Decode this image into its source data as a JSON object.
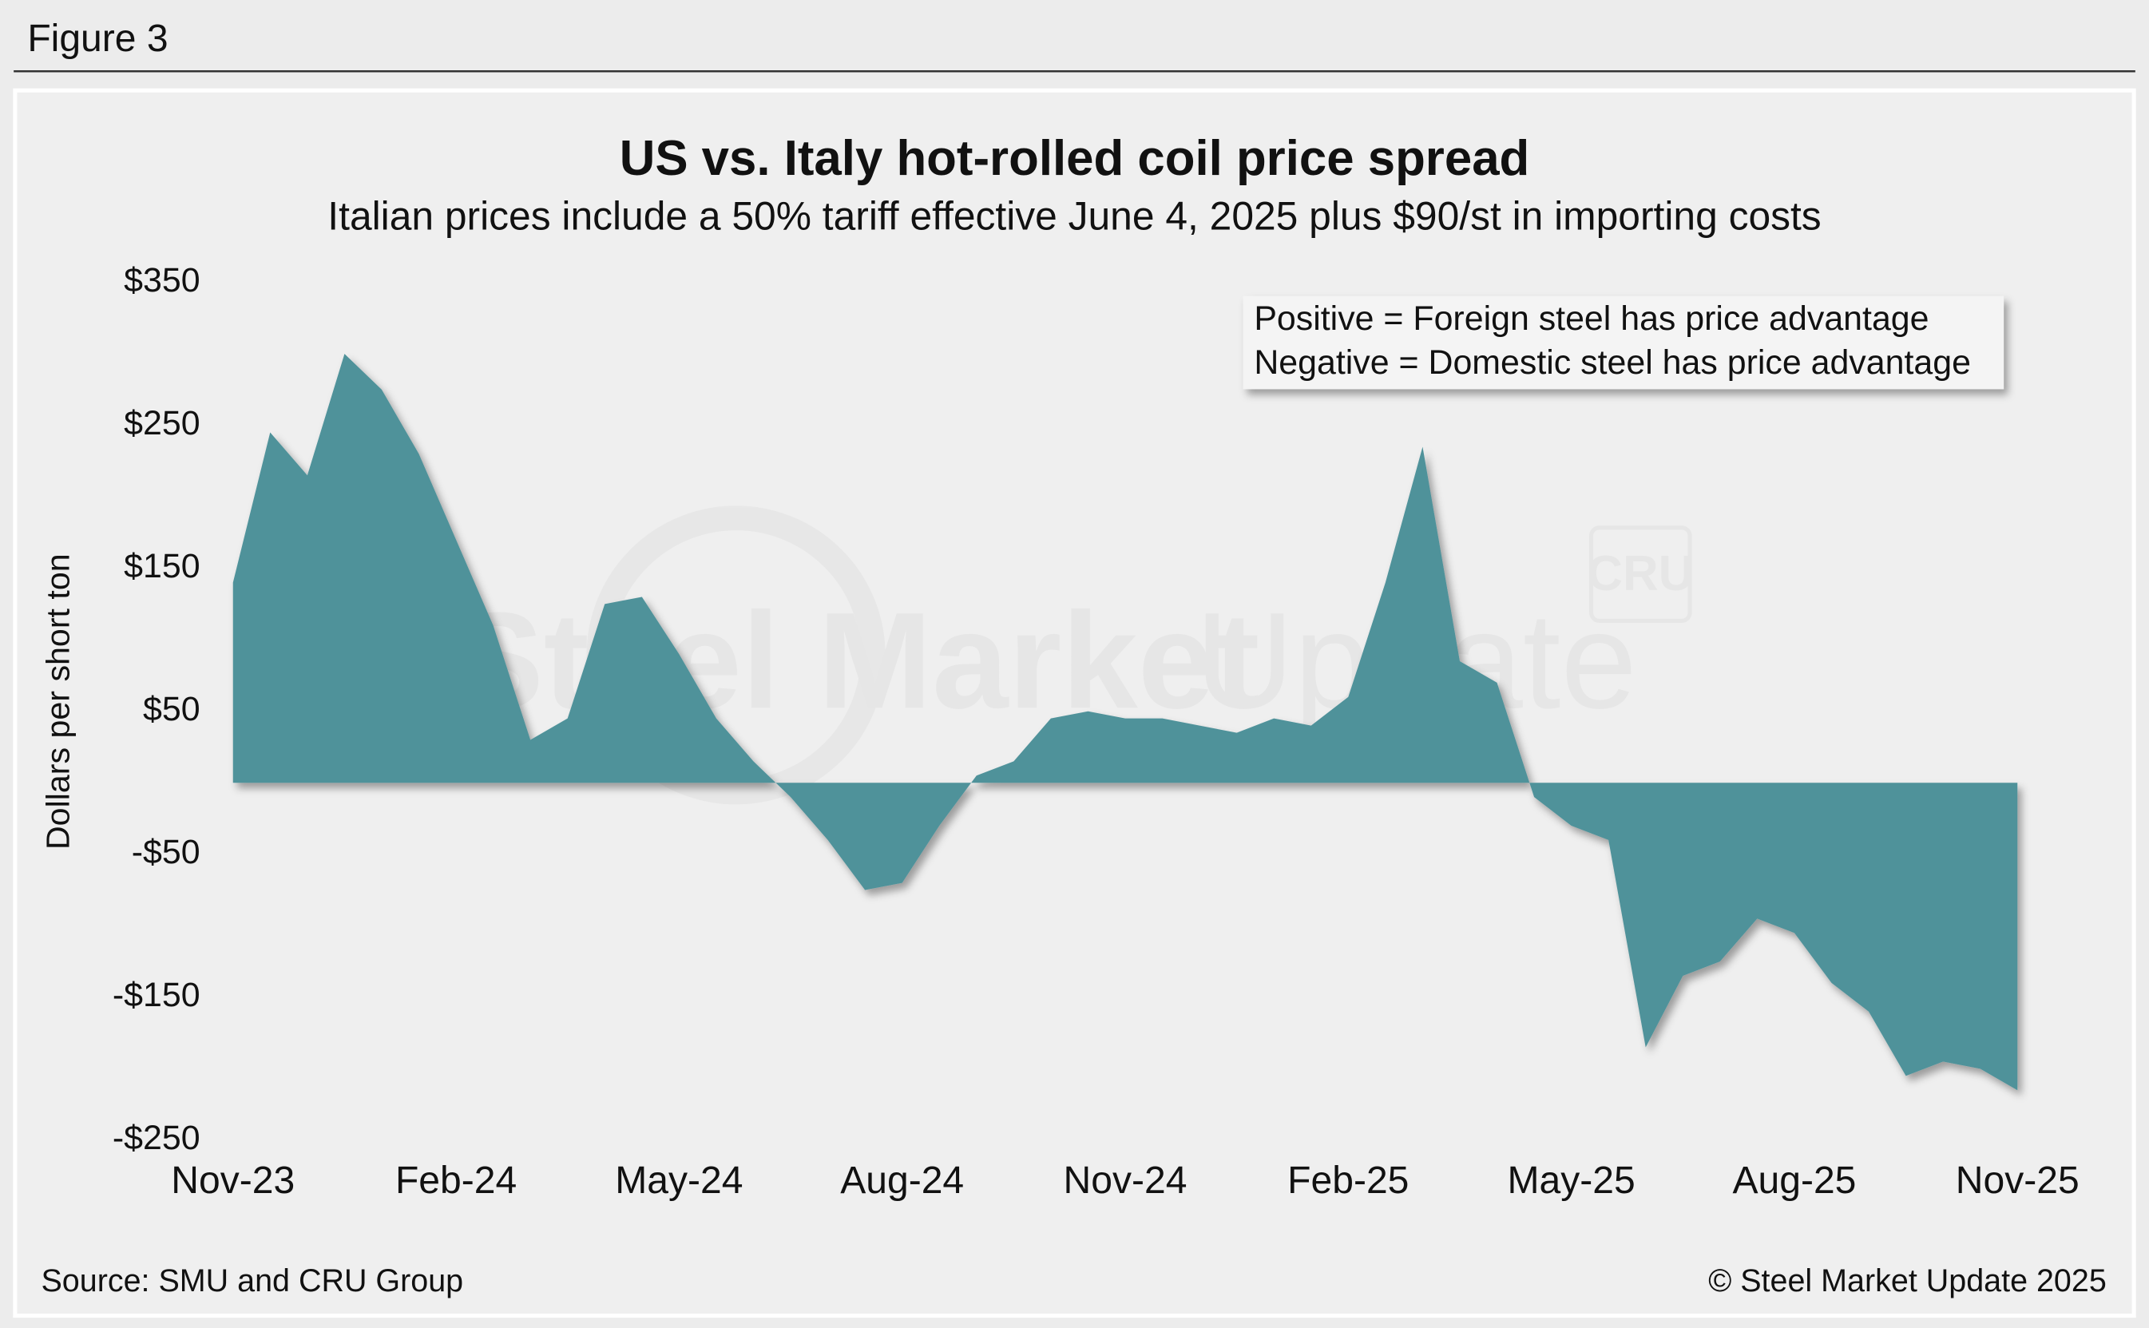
{
  "header": "Figure 3",
  "chart_data": {
    "type": "area",
    "title": "US vs. Italy hot-rolled coil price spread",
    "subtitle": "Italian prices include a 50% tariff effective June 4, 2025 plus $90/st in importing costs",
    "ylabel": "Dollars per short ton",
    "annotations": [
      "Positive = Foreign steel has price advantage",
      "Negative = Domestic steel has price advantage"
    ],
    "watermark": [
      "Steel Market",
      "Update",
      "CRU"
    ],
    "categories": [
      "Nov-23",
      null,
      null,
      null,
      null,
      null,
      "Feb-24",
      null,
      null,
      null,
      null,
      null,
      "May-24",
      null,
      null,
      null,
      null,
      null,
      "Aug-24",
      null,
      null,
      null,
      null,
      null,
      "Nov-24",
      null,
      null,
      null,
      null,
      null,
      "Feb-25",
      null,
      null,
      null,
      null,
      null,
      "May-25",
      null,
      null,
      null,
      null,
      null,
      "Aug-25",
      null,
      null,
      null,
      null,
      null,
      "Nov-25"
    ],
    "series": [
      {
        "color": "#4f929a",
        "values": [
          140,
          245,
          215,
          300,
          275,
          230,
          170,
          110,
          30,
          45,
          125,
          130,
          90,
          45,
          15,
          -10,
          -40,
          -75,
          -70,
          -30,
          5,
          15,
          45,
          50,
          45,
          45,
          40,
          35,
          45,
          40,
          60,
          140,
          235,
          85,
          70,
          -10,
          -30,
          -40,
          -185,
          -135,
          -125,
          -95,
          -105,
          -140,
          -160,
          -205,
          -195,
          -200,
          -215
        ]
      }
    ],
    "ylim": [
      -250,
      350
    ],
    "yticks": [
      {
        "value": 350,
        "label": "$350"
      },
      {
        "value": 250,
        "label": "$250"
      },
      {
        "value": 150,
        "label": "$150"
      },
      {
        "value": 50,
        "label": "$50"
      },
      {
        "value": -50,
        "label": "-$50"
      },
      {
        "value": -150,
        "label": "-$150"
      },
      {
        "value": -250,
        "label": "-$250"
      }
    ],
    "grid": false
  },
  "footer": {
    "source": "Source: SMU and CRU Group",
    "copyright": "© Steel Market Update 2025"
  }
}
